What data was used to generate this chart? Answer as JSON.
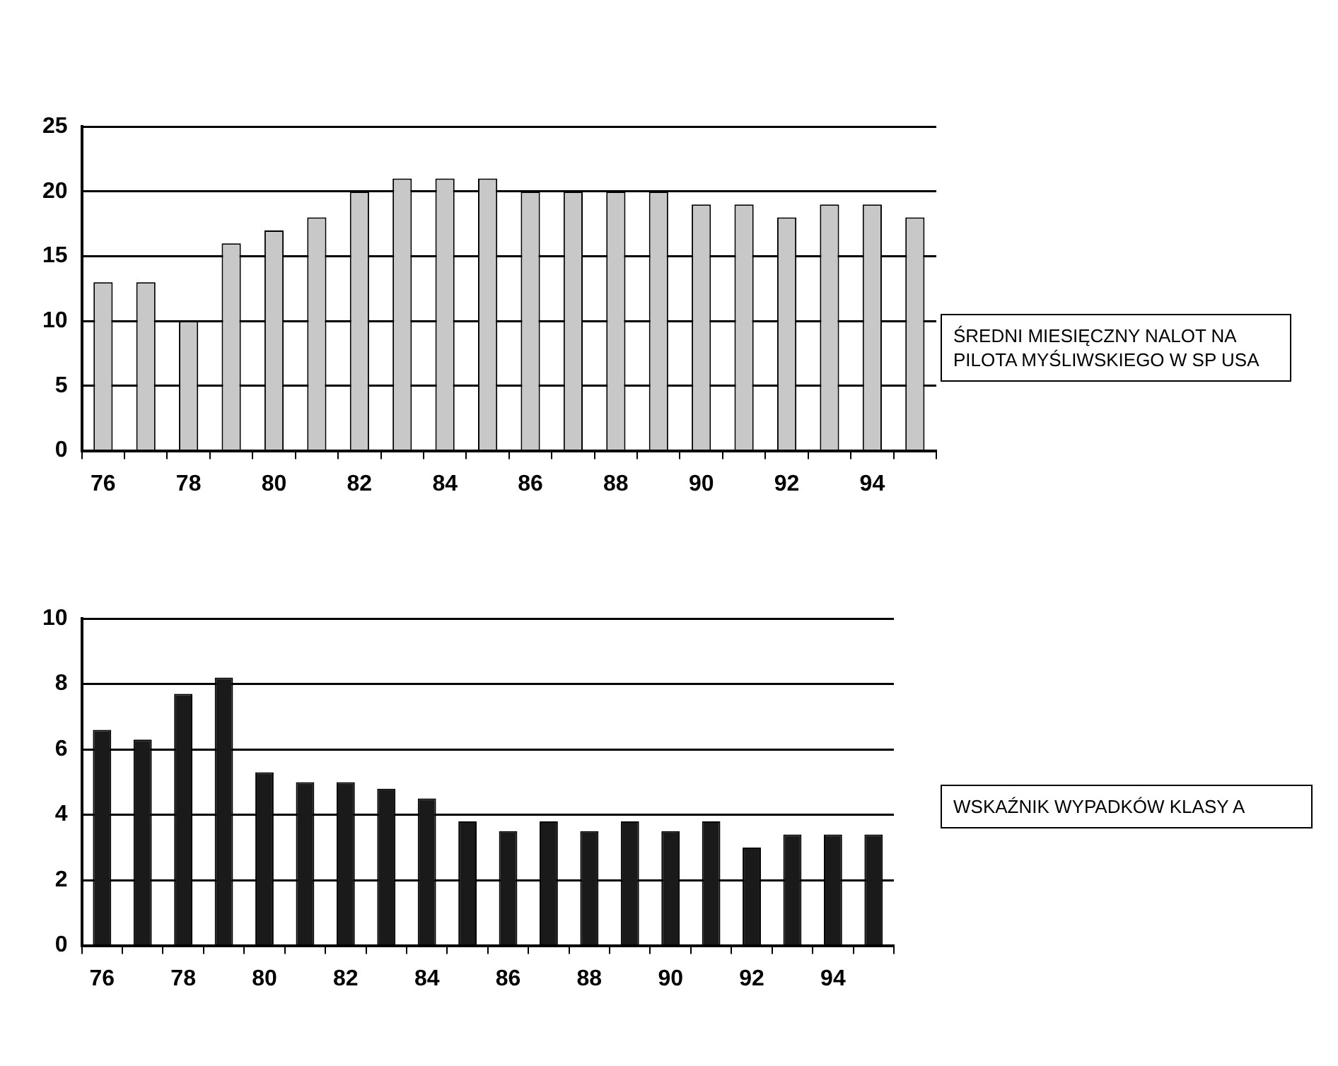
{
  "chart_data": [
    {
      "type": "bar",
      "categories": [
        "76",
        null,
        "78",
        null,
        "80",
        null,
        "82",
        null,
        "84",
        null,
        "86",
        null,
        "88",
        null,
        "90",
        null,
        "92",
        null,
        "94",
        null
      ],
      "values": [
        13,
        13,
        10,
        16,
        17,
        18,
        20,
        21,
        21,
        21,
        20,
        20,
        20,
        20,
        19,
        19,
        18,
        19,
        19,
        18
      ],
      "color": "#c8c8c8",
      "ylim": [
        0,
        25
      ],
      "yticks": [
        0,
        5,
        10,
        15,
        20,
        25
      ],
      "grid": "y",
      "legend": false,
      "annotations": [
        "ŚREDNI MIESIĘCZNY NALOT NA PILOTA MYŚLIWSKIEGO W SP USA"
      ]
    },
    {
      "type": "bar",
      "categories": [
        "76",
        null,
        "78",
        null,
        "80",
        null,
        "82",
        null,
        "84",
        null,
        "86",
        null,
        "88",
        null,
        "90",
        null,
        "92",
        null,
        "94",
        null
      ],
      "values": [
        6.6,
        6.3,
        7.7,
        8.2,
        5.3,
        5.0,
        5.0,
        4.8,
        4.5,
        3.8,
        3.5,
        3.8,
        3.5,
        3.8,
        3.5,
        3.8,
        3.0,
        3.4,
        3.4,
        3.4
      ],
      "color": "#1a1a1a",
      "ylim": [
        0,
        10
      ],
      "yticks": [
        0,
        2,
        4,
        6,
        8,
        10
      ],
      "grid": "y",
      "legend": false,
      "annotations": [
        "WSKAŹNIK WYPADKÓW KLASY A"
      ]
    }
  ]
}
